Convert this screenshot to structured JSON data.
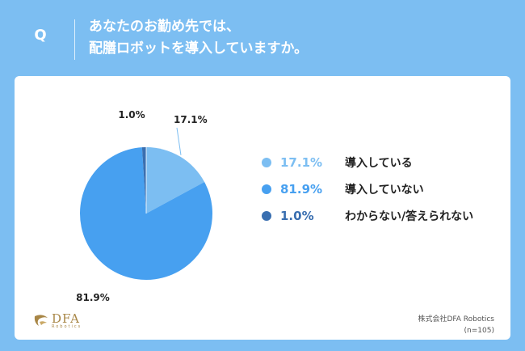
{
  "header": {
    "q_label": "Q",
    "question_line1": "あなたのお勤め先では、",
    "question_line2": "配膳ロボットを導入していますか。"
  },
  "chart_data": {
    "type": "pie",
    "slices": [
      {
        "label": "導入している",
        "value": 17.1,
        "display": "17.1%",
        "color": "#7cbef2"
      },
      {
        "label": "導入していない",
        "value": 81.9,
        "display": "81.9%",
        "color": "#47a0f0"
      },
      {
        "label": "わからない/答えられない",
        "value": 1.0,
        "display": "1.0%",
        "color": "#3a6fb0"
      }
    ],
    "legend_position": "right"
  },
  "logo": {
    "main": "DFA",
    "sub": "Robotics"
  },
  "credit": {
    "company": "株式会社DFA Robotics",
    "sample": "(n=105)"
  },
  "colors": {
    "background": "#7cbef2",
    "panel": "#ffffff",
    "logo_gold": "#a88646"
  }
}
